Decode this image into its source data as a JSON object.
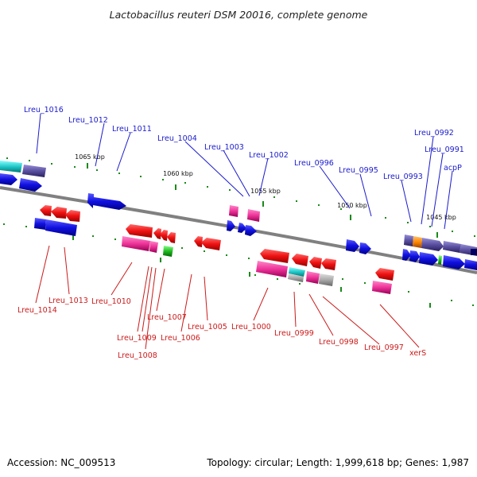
{
  "title": "Lactobacillus reuteri DSM 20016, complete genome",
  "footer": {
    "accession": "Accession: NC_009513",
    "topology": "Topology: circular; Length: 1,999,618 bp; Genes: 1,987"
  },
  "kbp_ticks": [
    "1065 kbp",
    "1060 kbp",
    "1055 kbp",
    "1050 kbp",
    "1045 kbp"
  ],
  "top_labels": [
    "Lreu_1016",
    "Lreu_1012",
    "Lreu_1011",
    "Lreu_1004",
    "Lreu_1003",
    "Lreu_1002",
    "Lreu_0996",
    "Lreu_0995",
    "Lreu_0993",
    "Lreu_0992",
    "Lreu_0991",
    "acpP"
  ],
  "bottom_labels": [
    "Lreu_1014",
    "Lreu_1013",
    "Lreu_1010",
    "Lreu_1009",
    "Lreu_1008",
    "Lreu_1007",
    "Lreu_1006",
    "Lreu_1005",
    "Lreu_1000",
    "Lreu_0999",
    "Lreu_0998",
    "Lreu_0997",
    "xerS"
  ],
  "colors": {
    "forward_blue": "#1010e0",
    "reverse_red": "#ee1111",
    "magenta": "#ee3399",
    "teal": "#22c8c8",
    "slate": "#5a50a0",
    "green": "#22bb22",
    "orange": "#ff8800",
    "gray": "#aaaaaa",
    "backbone": "#808080",
    "top_label": "#1a1acc",
    "bottom_label": "#cc1a1a"
  }
}
